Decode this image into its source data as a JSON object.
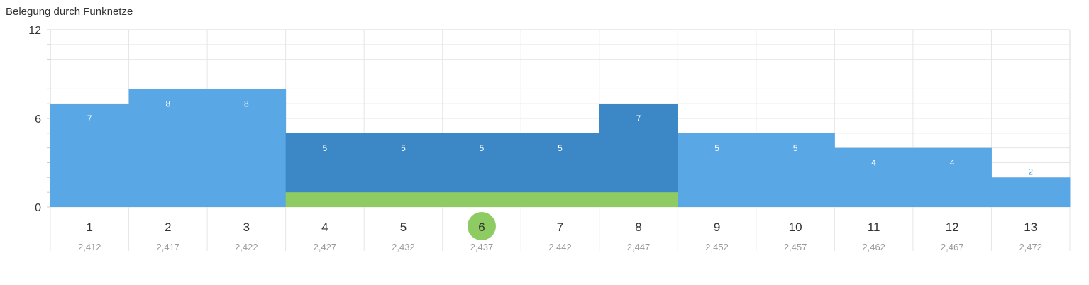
{
  "chart_data": {
    "type": "bar",
    "title": "Belegung durch Funknetze",
    "xlabel": "",
    "ylabel": "",
    "ylim": [
      0,
      12
    ],
    "yticks": [
      0,
      6,
      12
    ],
    "categories": [
      "1",
      "2",
      "3",
      "4",
      "5",
      "6",
      "7",
      "8",
      "9",
      "10",
      "11",
      "12",
      "13"
    ],
    "frequencies": [
      "2,412",
      "2,417",
      "2,422",
      "2,427",
      "2,432",
      "2,437",
      "2,442",
      "2,447",
      "2,452",
      "2,457",
      "2,462",
      "2,467",
      "2,472"
    ],
    "values": [
      7,
      8,
      8,
      5,
      5,
      5,
      5,
      7,
      5,
      5,
      4,
      4,
      2
    ],
    "highlighted_channels": [
      "4",
      "5",
      "6",
      "7",
      "8"
    ],
    "current_channel": "6",
    "own_network_range": [
      "4",
      "8"
    ],
    "own_network_value": 1,
    "grid": true,
    "colors": {
      "bar": "#5aa7e6",
      "bar_highlight": "#3c87c6",
      "own_network": "#8ecb62",
      "current_marker": "#8ecb62",
      "grid": "#e6e6e6"
    }
  }
}
